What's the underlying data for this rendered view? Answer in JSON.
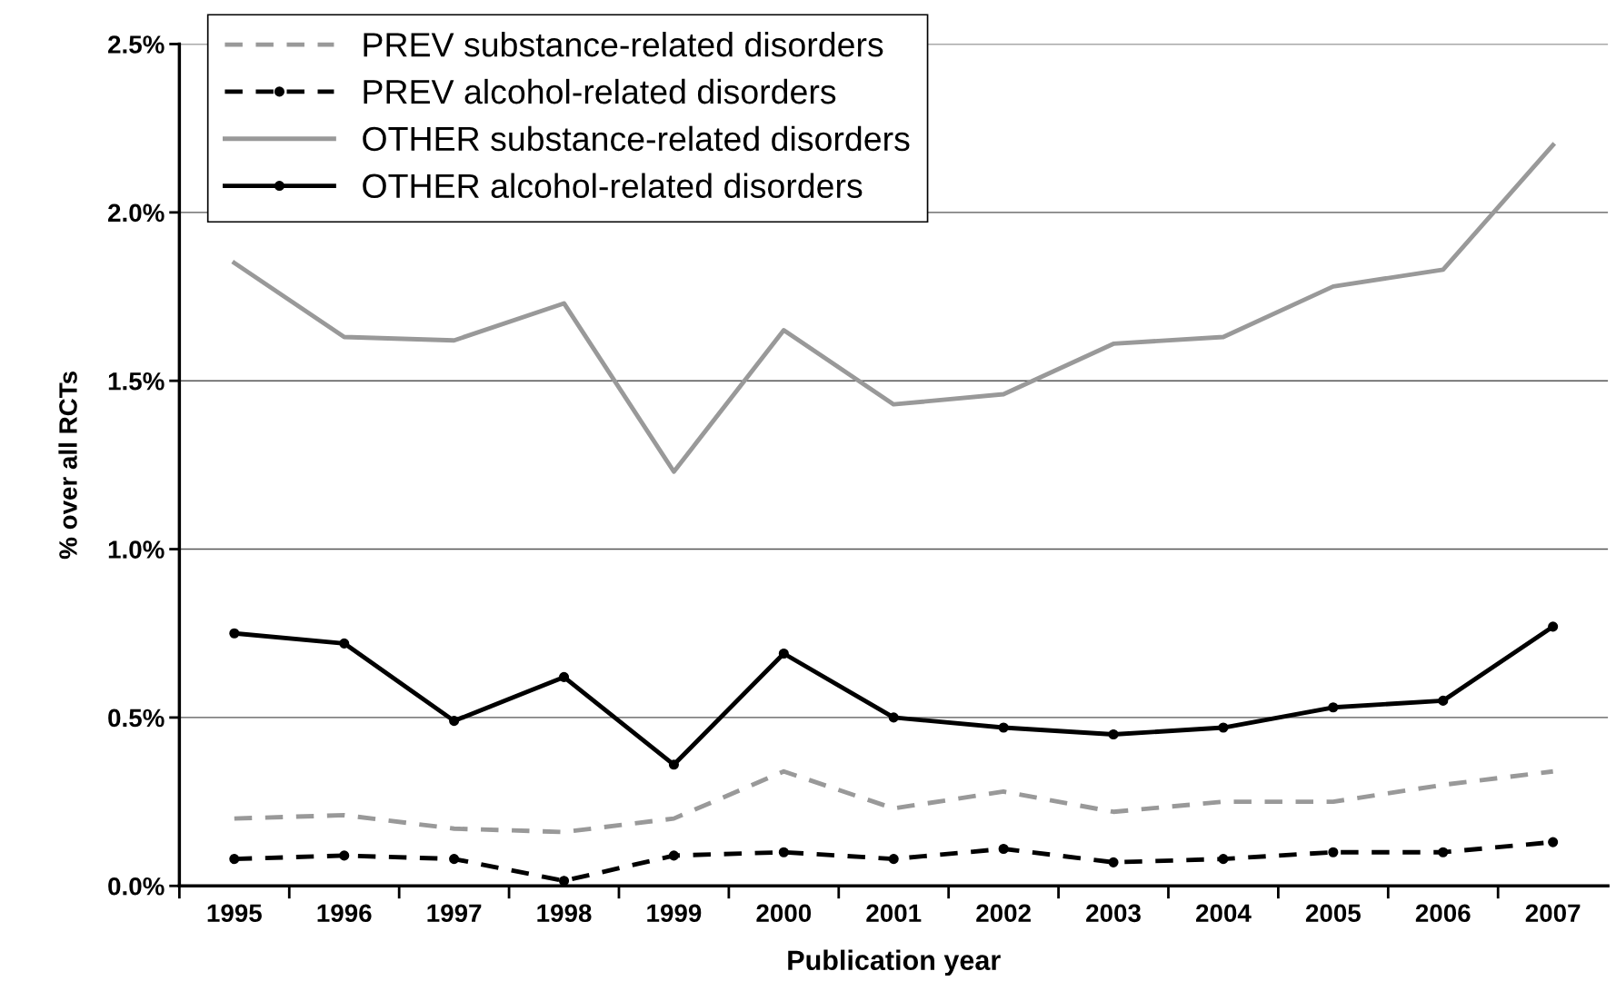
{
  "chart_data": {
    "type": "line",
    "xlabel": "Publication year",
    "ylabel": "% over all RCTs",
    "categories": [
      "1995",
      "1996",
      "1997",
      "1998",
      "1999",
      "2000",
      "2001",
      "2002",
      "2003",
      "2004",
      "2005",
      "2006",
      "2007"
    ],
    "series": [
      {
        "name": "PREV substance-related disorders",
        "color": "#999999",
        "line_style": "dashed",
        "marker": "none",
        "values": [
          0.2,
          0.21,
          0.17,
          0.16,
          0.2,
          0.34,
          0.23,
          0.28,
          0.22,
          0.25,
          0.25,
          0.3,
          0.34
        ]
      },
      {
        "name": "PREV alcohol-related disorders",
        "color": "#000000",
        "line_style": "dashed",
        "marker": "circle",
        "values": [
          0.08,
          0.09,
          0.08,
          0.015,
          0.09,
          0.1,
          0.08,
          0.11,
          0.07,
          0.08,
          0.1,
          0.1,
          0.13
        ]
      },
      {
        "name": "OTHER substance-related disorders",
        "color": "#999999",
        "line_style": "solid",
        "marker": "none",
        "values": [
          1.85,
          1.63,
          1.62,
          1.73,
          1.23,
          1.65,
          1.43,
          1.46,
          1.61,
          1.63,
          1.78,
          1.83,
          2.2
        ]
      },
      {
        "name": "OTHER alcohol-related disorders",
        "color": "#000000",
        "line_style": "solid",
        "marker": "circle",
        "values": [
          0.75,
          0.72,
          0.49,
          0.62,
          0.36,
          0.69,
          0.5,
          0.47,
          0.45,
          0.47,
          0.53,
          0.55,
          0.77
        ]
      }
    ],
    "ylim": [
      0,
      2.5
    ],
    "yticks": [
      {
        "value": 0,
        "label": "0.0%"
      },
      {
        "value": 0.5,
        "label": "0.5%"
      },
      {
        "value": 1.0,
        "label": "1.0%"
      },
      {
        "value": 1.5,
        "label": "1.5%"
      },
      {
        "value": 2.0,
        "label": "2.0%"
      },
      {
        "value": 2.5,
        "label": "2.5%"
      }
    ],
    "grid": "y",
    "legend": "top left"
  }
}
